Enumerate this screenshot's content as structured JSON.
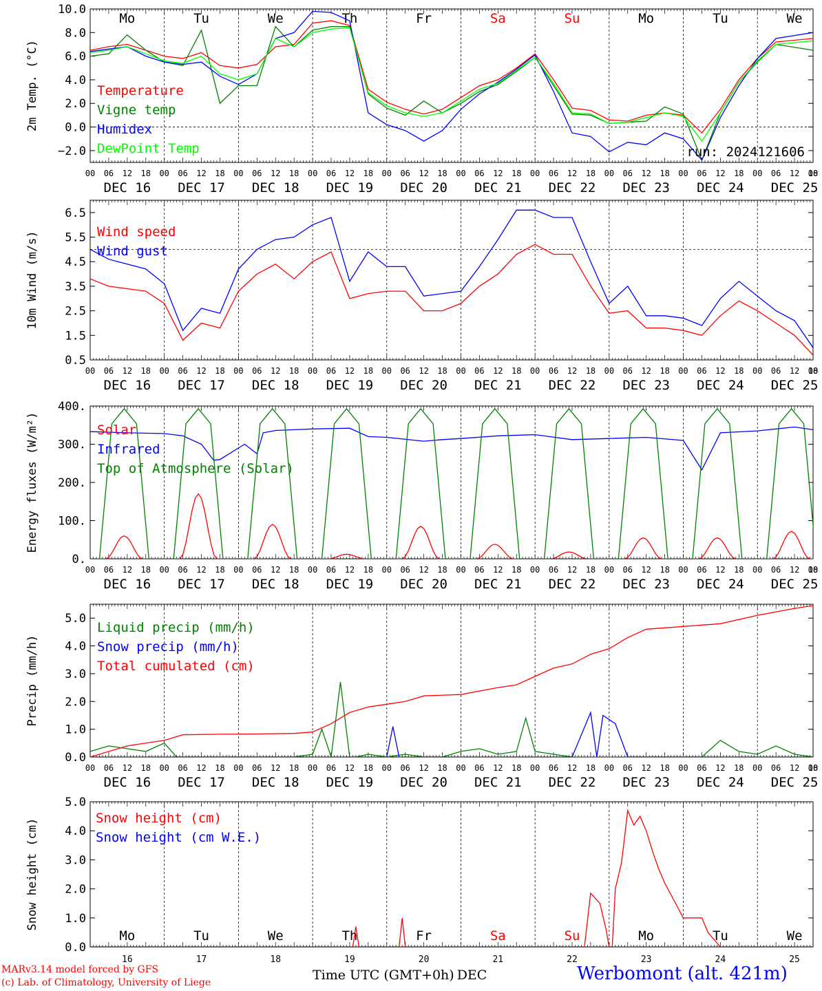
{
  "run_label": "run: 2024121606",
  "footer": {
    "model": "MARv3.14 model forced by GFS",
    "credit": "(c) Lab. of Climatology, University of Liege",
    "time_label": "Time UTC (GMT+0h)",
    "month_label": "DEC",
    "station": "Werbomont (alt. 421m)"
  },
  "days": [
    {
      "abbr": "Mo",
      "date": "DEC 16",
      "num": "16",
      "color": "#000000"
    },
    {
      "abbr": "Tu",
      "date": "DEC 17",
      "num": "17",
      "color": "#000000"
    },
    {
      "abbr": "We",
      "date": "DEC 18",
      "num": "18",
      "color": "#000000"
    },
    {
      "abbr": "Th",
      "date": "DEC 19",
      "num": "19",
      "color": "#000000"
    },
    {
      "abbr": "Fr",
      "date": "DEC 20",
      "num": "20",
      "color": "#000000"
    },
    {
      "abbr": "Sa",
      "date": "DEC 21",
      "num": "21",
      "color": "#ff0000"
    },
    {
      "abbr": "Su",
      "date": "DEC 22",
      "num": "22",
      "color": "#ff0000"
    },
    {
      "abbr": "Mo",
      "date": "DEC 23",
      "num": "23",
      "color": "#000000"
    },
    {
      "abbr": "Tu",
      "date": "DEC 24",
      "num": "24",
      "color": "#000000"
    },
    {
      "abbr": "We",
      "date": "DEC 25",
      "num": "25",
      "color": "#000000"
    }
  ],
  "hour_ticks": [
    "00",
    "06",
    "12",
    "18"
  ],
  "chart_data": [
    {
      "type": "line",
      "ylabel": "2m Temp. (°C)",
      "ylim": [
        -3,
        10
      ],
      "yticks": [
        "10.0",
        "8.0",
        "6.0",
        "4.0",
        "2.0",
        "0.0",
        "−2.0"
      ],
      "x_unit": "hours since DEC 16 00 UTC",
      "ref_line": 0,
      "grid": "vertical dashed at 00 UTC",
      "legend_position": "left",
      "series": [
        {
          "name": "Temperature",
          "color": "#ff0000",
          "x": [
            0,
            6,
            12,
            18,
            24,
            30,
            36,
            42,
            48,
            54,
            60,
            66,
            72,
            78,
            84,
            90,
            96,
            102,
            108,
            114,
            120,
            126,
            132,
            138,
            144,
            150,
            156,
            162,
            168,
            174,
            180,
            186,
            192,
            198,
            204,
            210,
            216,
            222,
            234
          ],
          "y": [
            6.5,
            6.8,
            7.0,
            6.5,
            6.0,
            5.8,
            6.3,
            5.2,
            5.0,
            5.3,
            6.8,
            7.0,
            8.8,
            9.0,
            8.6,
            3.2,
            2.1,
            1.5,
            1.1,
            1.5,
            2.5,
            3.5,
            4.0,
            5.0,
            6.2,
            4.0,
            1.6,
            1.4,
            0.6,
            0.5,
            1.0,
            1.2,
            1.0,
            -0.5,
            1.5,
            4.0,
            5.8,
            7.2,
            7.5
          ]
        },
        {
          "name": "Vigne temp",
          "color": "#008000",
          "x": [
            0,
            6,
            12,
            18,
            24,
            30,
            36,
            42,
            48,
            54,
            60,
            66,
            72,
            78,
            84,
            90,
            96,
            102,
            108,
            114,
            120,
            126,
            132,
            138,
            144,
            150,
            156,
            162,
            168,
            174,
            180,
            186,
            192,
            198,
            204,
            210,
            216,
            222,
            234
          ],
          "y": [
            6.0,
            6.2,
            7.8,
            6.5,
            5.5,
            5.2,
            8.2,
            2.0,
            3.5,
            3.5,
            8.5,
            6.8,
            8.2,
            8.5,
            8.5,
            2.8,
            1.6,
            1.0,
            2.2,
            1.2,
            2.0,
            3.0,
            3.6,
            4.7,
            5.9,
            3.5,
            1.1,
            1.0,
            0.3,
            0.4,
            0.5,
            1.7,
            1.1,
            -2.8,
            1.2,
            3.8,
            5.5,
            7.0,
            6.5
          ]
        },
        {
          "name": "Humidex",
          "color": "#0000ff",
          "x": [
            0,
            6,
            12,
            18,
            24,
            30,
            36,
            42,
            48,
            54,
            60,
            66,
            72,
            78,
            84,
            90,
            96,
            102,
            108,
            114,
            120,
            126,
            132,
            138,
            144,
            150,
            156,
            162,
            168,
            174,
            180,
            186,
            192,
            198,
            204,
            210,
            216,
            222,
            234
          ],
          "y": [
            6.4,
            6.6,
            6.8,
            6.0,
            5.5,
            5.3,
            5.5,
            4.3,
            3.6,
            4.5,
            7.5,
            8.0,
            9.8,
            9.7,
            9.0,
            1.2,
            0.2,
            -0.3,
            -1.2,
            -0.3,
            1.5,
            2.8,
            3.8,
            4.9,
            6.1,
            3.0,
            -0.5,
            -0.8,
            -2.1,
            -1.3,
            -1.5,
            -0.5,
            -1.0,
            -2.8,
            0.8,
            3.5,
            5.8,
            7.5,
            8.0
          ]
        },
        {
          "name": "DewPoint Temp",
          "color": "#00ff00",
          "x": [
            0,
            6,
            12,
            18,
            24,
            30,
            36,
            42,
            48,
            54,
            60,
            66,
            72,
            78,
            84,
            90,
            96,
            102,
            108,
            114,
            120,
            126,
            132,
            138,
            144,
            150,
            156,
            162,
            168,
            174,
            180,
            186,
            192,
            198,
            204,
            210,
            216,
            222,
            234
          ],
          "y": [
            6.3,
            6.5,
            6.8,
            6.2,
            5.6,
            5.4,
            6.0,
            4.5,
            4.0,
            4.5,
            7.5,
            6.8,
            8.0,
            8.3,
            8.4,
            2.9,
            1.8,
            1.2,
            0.9,
            1.2,
            2.2,
            3.2,
            3.7,
            4.8,
            5.9,
            3.7,
            1.2,
            1.1,
            0.3,
            0.4,
            0.8,
            1.2,
            0.9,
            -1.2,
            1.2,
            3.8,
            5.6,
            7.0,
            7.3
          ]
        }
      ]
    },
    {
      "type": "line",
      "ylabel": "10m Wind (m/s)",
      "ylim": [
        0.5,
        7.0
      ],
      "yticks": [
        "6.5",
        "5.5",
        "4.5",
        "3.5",
        "2.5",
        "1.5",
        "0.5"
      ],
      "x_unit": "hours since DEC 16 00 UTC",
      "ref_line": 5,
      "grid": "vertical dashed at 00 UTC",
      "legend_position": "left",
      "series": [
        {
          "name": "Wind speed",
          "color": "#ff0000",
          "x": [
            0,
            6,
            12,
            18,
            24,
            30,
            36,
            42,
            48,
            54,
            60,
            66,
            72,
            78,
            84,
            90,
            96,
            102,
            108,
            114,
            120,
            126,
            132,
            138,
            144,
            150,
            156,
            162,
            168,
            174,
            180,
            186,
            192,
            198,
            204,
            210,
            216,
            222,
            228,
            234
          ],
          "y": [
            3.8,
            3.5,
            3.4,
            3.3,
            2.8,
            1.3,
            2.0,
            1.8,
            3.3,
            4.0,
            4.4,
            3.8,
            4.5,
            4.9,
            3.0,
            3.2,
            3.3,
            3.3,
            2.5,
            2.5,
            2.8,
            3.5,
            4.0,
            4.8,
            5.2,
            4.8,
            4.8,
            3.5,
            2.4,
            2.5,
            1.8,
            1.8,
            1.7,
            1.5,
            2.3,
            2.9,
            2.5,
            2.0,
            1.5,
            0.7
          ]
        },
        {
          "name": "Wind gust",
          "color": "#0000ff",
          "x": [
            0,
            6,
            12,
            18,
            24,
            30,
            36,
            42,
            48,
            54,
            60,
            66,
            72,
            78,
            84,
            90,
            96,
            102,
            108,
            114,
            120,
            126,
            132,
            138,
            144,
            150,
            156,
            162,
            168,
            174,
            180,
            186,
            192,
            198,
            204,
            210,
            216,
            222,
            228,
            234
          ],
          "y": [
            5.0,
            4.6,
            4.4,
            4.2,
            3.6,
            1.7,
            2.6,
            2.4,
            4.2,
            5.0,
            5.4,
            5.5,
            6.0,
            6.3,
            3.7,
            4.9,
            4.3,
            4.3,
            3.1,
            3.2,
            3.3,
            4.3,
            5.4,
            6.6,
            6.6,
            6.3,
            6.3,
            4.5,
            2.8,
            3.5,
            2.3,
            2.3,
            2.2,
            1.9,
            3.0,
            3.7,
            3.1,
            2.5,
            2.1,
            1.0
          ]
        }
      ]
    },
    {
      "type": "line",
      "ylabel": "Energy fluxes (W/m²)",
      "ylim": [
        0,
        400
      ],
      "yticks": [
        "400.",
        "300.",
        "200.",
        "100.",
        "0."
      ],
      "x_unit": "hours since DEC 16 00 UTC",
      "grid": "vertical dashed at 00 UTC",
      "legend_position": "left",
      "series": [
        {
          "name": "Solar",
          "color": "#ff0000",
          "peak_hours": [
            11,
            35,
            59,
            83,
            107,
            131,
            155,
            179,
            203,
            227
          ],
          "peaks": [
            60,
            170,
            90,
            12,
            85,
            38,
            18,
            55,
            55,
            72
          ]
        },
        {
          "name": "Infrared",
          "color": "#0000ff",
          "x": [
            0,
            12,
            24,
            30,
            36,
            40,
            42,
            48,
            50,
            54,
            56,
            60,
            66,
            72,
            84,
            90,
            96,
            108,
            114,
            120,
            132,
            144,
            156,
            168,
            180,
            192,
            198,
            204,
            216,
            228,
            234
          ],
          "y": [
            333,
            330,
            328,
            322,
            300,
            258,
            260,
            290,
            300,
            275,
            330,
            336,
            338,
            340,
            342,
            320,
            318,
            308,
            312,
            315,
            322,
            325,
            312,
            315,
            318,
            310,
            233,
            330,
            335,
            345,
            338
          ]
        },
        {
          "name": "Top of Atmosphere (Solar)",
          "color": "#008000",
          "peak_hours": [
            11,
            35,
            59,
            83,
            107,
            131,
            155,
            179,
            203,
            227
          ],
          "peak_value": 393
        }
      ]
    },
    {
      "type": "line",
      "ylabel": "Precip (mm/h)",
      "ylim": [
        0,
        5.5
      ],
      "yticks": [
        "5.0",
        "4.0",
        "3.0",
        "2.0",
        "1.0",
        "0.0"
      ],
      "x_unit": "hours since DEC 16 00 UTC",
      "grid": "vertical dashed at 00 UTC",
      "legend_position": "left",
      "series": [
        {
          "name": "Liquid precip (mm/h)",
          "color": "#008000",
          "x": [
            0,
            6,
            12,
            18,
            24,
            28,
            30,
            36,
            48,
            66,
            72,
            75,
            78,
            81,
            84,
            86,
            90,
            96,
            102,
            108,
            114,
            120,
            126,
            132,
            138,
            141,
            144,
            150,
            156,
            162,
            168,
            174,
            180,
            192,
            198,
            204,
            210,
            216,
            222,
            228,
            234
          ],
          "y": [
            0.2,
            0.4,
            0.3,
            0.2,
            0.5,
            0.0,
            0.0,
            0.0,
            0.0,
            0.0,
            0.1,
            1.0,
            0.0,
            2.7,
            0.0,
            0.0,
            0.1,
            0.0,
            0.1,
            0.0,
            0.0,
            0.2,
            0.3,
            0.1,
            0.2,
            1.4,
            0.2,
            0.1,
            0.0,
            0.0,
            0.0,
            0.0,
            0.0,
            0.0,
            0.0,
            0.6,
            0.2,
            0.1,
            0.4,
            0.1,
            0.0
          ]
        },
        {
          "name": "Snow precip (mm/h)",
          "color": "#0000ff",
          "x": [
            0,
            84,
            90,
            96,
            98,
            100,
            102,
            108,
            150,
            154,
            156,
            162,
            164,
            166,
            170,
            174,
            180,
            234
          ],
          "y": [
            0.0,
            0.0,
            0.0,
            0.0,
            1.1,
            0.0,
            0.0,
            0.0,
            0.0,
            0.0,
            0.0,
            1.6,
            0.0,
            1.5,
            1.2,
            0.0,
            0.0,
            0.0
          ]
        },
        {
          "name": "Total cumulated (cm)",
          "color": "#ff0000",
          "x": [
            0,
            12,
            24,
            30,
            42,
            54,
            66,
            72,
            78,
            84,
            90,
            96,
            102,
            108,
            120,
            132,
            138,
            144,
            150,
            156,
            162,
            168,
            174,
            180,
            192,
            198,
            204,
            216,
            228,
            234
          ],
          "y": [
            0.0,
            0.4,
            0.6,
            0.8,
            0.82,
            0.83,
            0.85,
            0.9,
            1.2,
            1.6,
            1.8,
            1.9,
            2.0,
            2.2,
            2.25,
            2.5,
            2.6,
            2.9,
            3.2,
            3.35,
            3.7,
            3.9,
            4.3,
            4.6,
            4.7,
            4.75,
            4.8,
            5.1,
            5.35,
            5.45
          ]
        }
      ]
    },
    {
      "type": "line",
      "ylabel": "Snow height (cm)",
      "ylim": [
        0,
        5.0
      ],
      "yticks": [
        "5.0",
        "4.0",
        "3.0",
        "2.0",
        "1.0",
        "0.0"
      ],
      "x_unit": "hours since DEC 16 00 UTC",
      "grid": "vertical dashed at 00 UTC",
      "legend_position": "left",
      "series": [
        {
          "name": "Snow height (cm)",
          "color": "#ff0000",
          "x": [
            0,
            85,
            86,
            87,
            88,
            100,
            101,
            102,
            103,
            160,
            162,
            165,
            167,
            168,
            169,
            170,
            172,
            174,
            176,
            178,
            180,
            182,
            184,
            186,
            188,
            192,
            196,
            198,
            200,
            204,
            234
          ],
          "y": [
            0,
            0,
            0.7,
            0,
            0,
            0,
            1.0,
            0,
            0,
            0,
            1.85,
            1.5,
            0.6,
            0,
            0,
            2.0,
            2.9,
            4.7,
            4.2,
            4.5,
            4.0,
            3.3,
            2.7,
            2.2,
            1.8,
            1.0,
            1.0,
            1.0,
            0.5,
            0,
            0
          ]
        },
        {
          "name": "Snow height (cm W.E.)",
          "color": "#0000ff",
          "x": [
            0,
            234
          ],
          "y": [
            0,
            0
          ]
        }
      ]
    }
  ]
}
